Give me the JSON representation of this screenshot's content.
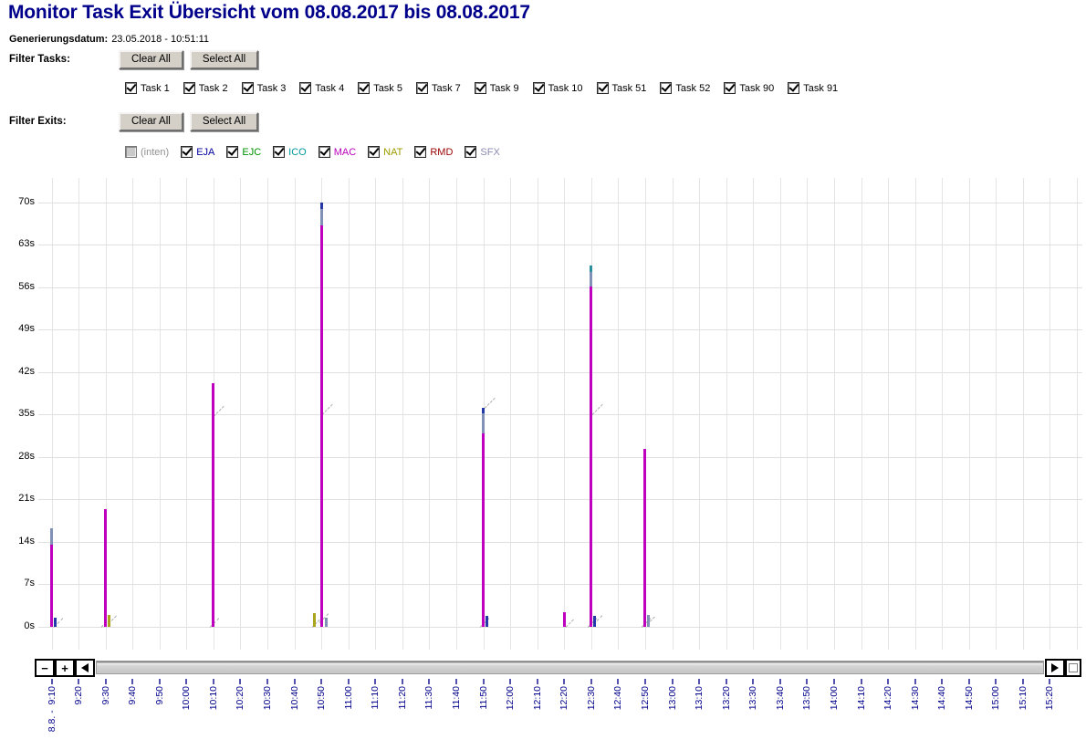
{
  "title": "Monitor Task Exit Übersicht vom 08.08.2017 bis 08.08.2017",
  "generated": {
    "label": "Generierungsdatum:",
    "value": "23.05.2018 - 10:51:11"
  },
  "filter_tasks": {
    "label": "Filter Tasks:",
    "clear_all_label": "Clear All",
    "select_all_label": "Select All",
    "tasks": [
      {
        "label": "Task 1",
        "checked": true
      },
      {
        "label": "Task 2",
        "checked": true
      },
      {
        "label": "Task 3",
        "checked": true
      },
      {
        "label": "Task 4",
        "checked": true
      },
      {
        "label": "Task 5",
        "checked": true
      },
      {
        "label": "Task 7",
        "checked": true
      },
      {
        "label": "Task 9",
        "checked": true
      },
      {
        "label": "Task 10",
        "checked": true
      },
      {
        "label": "Task 51",
        "checked": true
      },
      {
        "label": "Task 52",
        "checked": true
      },
      {
        "label": "Task 90",
        "checked": true
      },
      {
        "label": "Task 91",
        "checked": true
      }
    ]
  },
  "filter_exits": {
    "label": "Filter Exits:",
    "clear_all_label": "Clear All",
    "select_all_label": "Select All",
    "exits": [
      {
        "label": "(inten)",
        "checked": false,
        "disabled": true,
        "color": "#909090"
      },
      {
        "label": "EJA",
        "checked": true,
        "disabled": false,
        "color": "#00009C"
      },
      {
        "label": "EJC",
        "checked": true,
        "disabled": false,
        "color": "#009400"
      },
      {
        "label": "ICO",
        "checked": true,
        "disabled": false,
        "color": "#00999C"
      },
      {
        "label": "MAC",
        "checked": true,
        "disabled": false,
        "color": "#BB00BB"
      },
      {
        "label": "NAT",
        "checked": true,
        "disabled": false,
        "color": "#9C9C00"
      },
      {
        "label": "RMD",
        "checked": true,
        "disabled": false,
        "color": "#9C0000"
      },
      {
        "label": "SFX",
        "checked": true,
        "disabled": false,
        "color": "#8A8AB0"
      }
    ]
  },
  "chart_data": {
    "type": "bar",
    "title": "",
    "y_unit": "s",
    "ylim": [
      0,
      74
    ],
    "grid": true,
    "yticks": [
      {
        "value": 0,
        "label": "0s"
      },
      {
        "value": 7,
        "label": "7s"
      },
      {
        "value": 14,
        "label": "14s"
      },
      {
        "value": 21,
        "label": "21s"
      },
      {
        "value": 28,
        "label": "28s"
      },
      {
        "value": 35,
        "label": "35s"
      },
      {
        "value": 42,
        "label": "42s"
      },
      {
        "value": 49,
        "label": "49s"
      },
      {
        "value": 56,
        "label": "56s"
      },
      {
        "value": 63,
        "label": "63s"
      },
      {
        "value": 70,
        "label": "70s"
      }
    ],
    "x_labels": [
      "9:10",
      "9:20",
      "9:30",
      "9:40",
      "9:50",
      "10:00",
      "10:10",
      "10:20",
      "10:30",
      "10:40",
      "10:50",
      "11:00",
      "11:10",
      "11:20",
      "11:30",
      "11:40",
      "11:50",
      "12:00",
      "12:10",
      "12:20",
      "12:30",
      "12:40",
      "12:50",
      "13:00",
      "13:10",
      "13:20",
      "13:30",
      "13:40",
      "13:50",
      "14:00",
      "14:10",
      "14:20",
      "14:30",
      "14:40",
      "14:50",
      "15:00",
      "15:10",
      "15:20"
    ],
    "x_first_label_date_prefix": "8.8. -",
    "palette": {
      "MAC": "#BE00BE",
      "SFX": "#8191B5",
      "EJA": "#2438A8",
      "NAT": "#ABA51E",
      "ICO": "#2C8F9E"
    },
    "groups": [
      {
        "time": "9:10",
        "bars": [
          {
            "exit": "MAC",
            "dx": 0,
            "from": 0,
            "to": 13.5
          },
          {
            "exit": "SFX",
            "dx": 0,
            "from": 13.5,
            "to": 16.2
          },
          {
            "exit": "EJA",
            "dx": 4,
            "from": 0,
            "to": 1.5
          }
        ],
        "marks": [
          {
            "dx": 2,
            "s": 0,
            "len": 14
          }
        ]
      },
      {
        "time": "9:30",
        "bars": [
          {
            "exit": "MAC",
            "dx": 0,
            "from": 0,
            "to": 19.4
          },
          {
            "exit": "NAT",
            "dx": 4,
            "from": 0,
            "to": 2.0
          }
        ],
        "marks": [
          {
            "dx": -5,
            "s": 0,
            "len": 14
          },
          {
            "dx": 3,
            "s": 0.6,
            "len": 12
          }
        ]
      },
      {
        "time": "10:10",
        "bars": [
          {
            "exit": "MAC",
            "dx": 0,
            "from": 0,
            "to": 40.2
          }
        ],
        "marks": [
          {
            "dx": -4,
            "s": 0,
            "len": 14
          },
          {
            "dx": 0,
            "s": 34.8,
            "len": 16
          }
        ]
      },
      {
        "time": "10:50",
        "bars": [
          {
            "exit": "NAT",
            "dx": -8,
            "from": 0,
            "to": 2.2
          },
          {
            "exit": "MAC",
            "dx": 0,
            "from": 0,
            "to": 66.3
          },
          {
            "exit": "SFX",
            "dx": 0,
            "from": 66.3,
            "to": 69.0
          },
          {
            "exit": "EJA",
            "dx": 0,
            "from": 69.0,
            "to": 70.0
          },
          {
            "exit": "SFX",
            "dx": 5,
            "from": 0,
            "to": 1.5
          }
        ],
        "marks": [
          {
            "dx": -10,
            "s": 0,
            "len": 16
          },
          {
            "dx": -2,
            "s": 0.8,
            "len": 14
          },
          {
            "dx": 1,
            "s": 35,
            "len": 16
          }
        ]
      },
      {
        "time": "11:50",
        "bars": [
          {
            "exit": "MAC",
            "dx": 0,
            "from": 0,
            "to": 31.9
          },
          {
            "exit": "SFX",
            "dx": 0,
            "from": 31.9,
            "to": 35.2
          },
          {
            "exit": "EJA",
            "dx": 0,
            "from": 35.2,
            "to": 36.1
          },
          {
            "exit": "EJA",
            "dx": 4,
            "from": 0,
            "to": 1.8
          }
        ],
        "marks": [
          {
            "dx": -4,
            "s": 0,
            "len": 14
          },
          {
            "dx": 1,
            "s": 36.2,
            "len": 16
          }
        ]
      },
      {
        "time": "12:20",
        "bars": [
          {
            "exit": "MAC",
            "dx": 0,
            "from": 0,
            "to": 2.4
          }
        ],
        "marks": [
          {
            "dx": 2,
            "s": 0,
            "len": 12
          }
        ]
      },
      {
        "time": "12:30",
        "bars": [
          {
            "exit": "MAC",
            "dx": 0,
            "from": 0,
            "to": 56.2
          },
          {
            "exit": "SFX",
            "dx": 0,
            "from": 56.2,
            "to": 58.6
          },
          {
            "exit": "ICO",
            "dx": 0,
            "from": 58.6,
            "to": 59.6
          },
          {
            "exit": "EJA",
            "dx": 4,
            "from": 0,
            "to": 1.8
          }
        ],
        "marks": [
          {
            "dx": -4,
            "s": 0,
            "len": 14
          },
          {
            "dx": 2,
            "s": 0.5,
            "len": 14
          },
          {
            "dx": 1,
            "s": 35,
            "len": 16
          }
        ]
      },
      {
        "time": "12:50",
        "bars": [
          {
            "exit": "MAC",
            "dx": 0,
            "from": 0,
            "to": 29.3
          },
          {
            "exit": "SFX",
            "dx": 4,
            "from": 0,
            "to": 1.9
          }
        ],
        "marks": [
          {
            "dx": -4,
            "s": 0,
            "len": 14
          },
          {
            "dx": 2,
            "s": 0.5,
            "len": 12
          }
        ]
      }
    ]
  },
  "scrollbar": {
    "zoom_out_label": "−",
    "zoom_in_label": "+"
  }
}
